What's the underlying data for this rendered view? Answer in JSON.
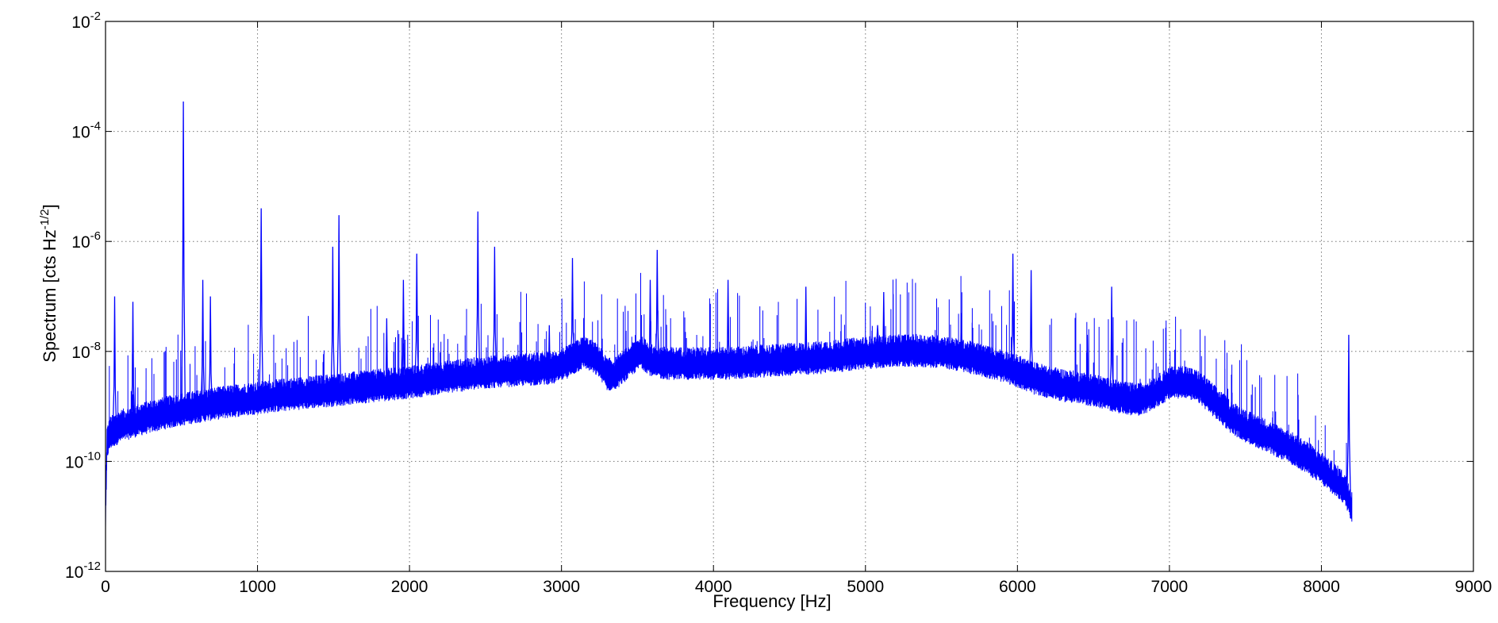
{
  "chart_data": {
    "type": "line",
    "title": "",
    "xlabel": "Frequency [Hz]",
    "ylabel": {
      "main": "Spectrum [cts Hz",
      "exponent": "-1/2",
      "close": "]"
    },
    "xlim": [
      0,
      9000
    ],
    "ylim": [
      1e-12,
      0.01
    ],
    "yscale": "log",
    "grid": true,
    "xticks": [
      "0",
      "1000",
      "2000",
      "3000",
      "4000",
      "5000",
      "6000",
      "7000",
      "8000",
      "9000"
    ],
    "yticks": [
      {
        "base": "10",
        "exp": "-12",
        "value": 1e-12
      },
      {
        "base": "10",
        "exp": "-10",
        "value": 1e-10
      },
      {
        "base": "10",
        "exp": "-8",
        "value": 1e-08
      },
      {
        "base": "10",
        "exp": "-6",
        "value": 1e-06
      },
      {
        "base": "10",
        "exp": "-4",
        "value": 0.0001
      },
      {
        "base": "10",
        "exp": "-2",
        "value": 0.01
      }
    ],
    "series": [
      {
        "color": "#0000ff",
        "baseline": {
          "x": [
            0,
            10,
            30,
            100,
            200,
            300,
            400,
            500,
            600,
            700,
            800,
            1000,
            1200,
            1500,
            1800,
            2000,
            2200,
            2400,
            2600,
            2800,
            2950,
            3050,
            3150,
            3250,
            3300,
            3350,
            3450,
            3520,
            3600,
            3700,
            3900,
            4100,
            4300,
            4500,
            4700,
            4900,
            5100,
            5300,
            5500,
            5700,
            5900,
            6000,
            6100,
            6300,
            6500,
            6600,
            6700,
            6800,
            6900,
            7000,
            7100,
            7200,
            7300,
            7400,
            7500,
            7600,
            7700,
            7800,
            7900,
            8000,
            8050,
            8100,
            8150,
            8180,
            8200
          ],
          "y": [
            1e-11,
            2e-10,
            3e-10,
            4e-10,
            5e-10,
            6e-10,
            7e-10,
            8e-10,
            9e-10,
            1e-09,
            1.1e-09,
            1.3e-09,
            1.5e-09,
            1.8e-09,
            2.2e-09,
            2.5e-09,
            3e-09,
            3.5e-09,
            4e-09,
            4.3e-09,
            4.6e-09,
            6e-09,
            9e-09,
            6e-09,
            3.5e-09,
            3.5e-09,
            6e-09,
            9e-09,
            6e-09,
            5.5e-09,
            5.5e-09,
            5.5e-09,
            6e-09,
            6.5e-09,
            7e-09,
            8e-09,
            9e-09,
            9.5e-09,
            9e-09,
            7e-09,
            5e-09,
            4e-09,
            3e-09,
            2.2e-09,
            1.8e-09,
            1.5e-09,
            1.3e-09,
            1.2e-09,
            1.6e-09,
            2.4e-09,
            2.6e-09,
            2e-09,
            1.1e-09,
            6e-10,
            4e-10,
            3e-10,
            2.2e-10,
            1.6e-10,
            1.1e-10,
            7e-11,
            5e-11,
            4e-11,
            3e-11,
            2e-11,
            1.4e-11
          ]
        },
        "peaks": [
          {
            "x": 512,
            "y": 0.00035
          },
          {
            "x": 1024,
            "y": 4e-06
          },
          {
            "x": 1536,
            "y": 3e-06
          },
          {
            "x": 1495,
            "y": 8e-07
          },
          {
            "x": 1960,
            "y": 2e-07
          },
          {
            "x": 2048,
            "y": 6e-07
          },
          {
            "x": 2450,
            "y": 3.5e-06
          },
          {
            "x": 2560,
            "y": 8e-07
          },
          {
            "x": 3072,
            "y": 5e-07
          },
          {
            "x": 3584,
            "y": 2e-07
          },
          {
            "x": 3630,
            "y": 7e-07
          },
          {
            "x": 4096,
            "y": 2e-07
          },
          {
            "x": 4608,
            "y": 1.5e-07
          },
          {
            "x": 5120,
            "y": 1.2e-07
          },
          {
            "x": 5630,
            "y": 5e-08
          },
          {
            "x": 5970,
            "y": 6e-07
          },
          {
            "x": 6090,
            "y": 3e-07
          },
          {
            "x": 6620,
            "y": 1.5e-07
          },
          {
            "x": 8180,
            "y": 2e-08
          },
          {
            "x": 60,
            "y": 1e-07
          },
          {
            "x": 180,
            "y": 8e-08
          },
          {
            "x": 640,
            "y": 2e-07
          },
          {
            "x": 690,
            "y": 1e-07
          },
          {
            "x": 1850,
            "y": 4e-08
          },
          {
            "x": 2920,
            "y": 3e-08
          },
          {
            "x": 5080,
            "y": 3e-08
          },
          {
            "x": 6460,
            "y": 2e-08
          }
        ]
      }
    ]
  }
}
